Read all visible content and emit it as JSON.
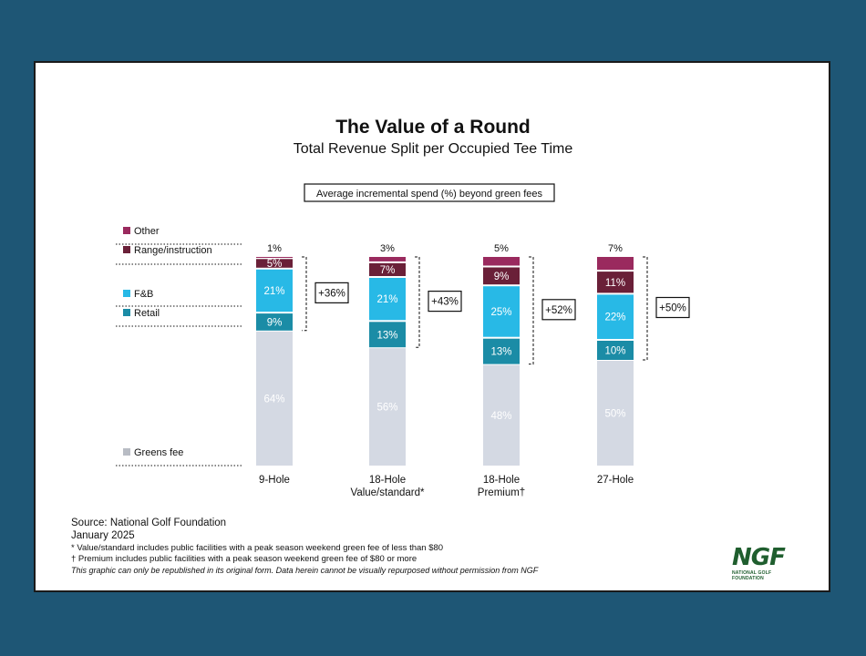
{
  "chart_data": {
    "type": "bar",
    "stacked": true,
    "title": "The Value of a Round",
    "subtitle": "Total Revenue Split per Occupied Tee Time",
    "annotation_box": "Average incremental spend (%) beyond green fees",
    "categories": [
      [
        "9-Hole"
      ],
      [
        "18-Hole",
        "Value/standard*"
      ],
      [
        "18-Hole",
        "Premium†"
      ],
      [
        "27-Hole"
      ]
    ],
    "series": [
      {
        "name": "Greens fee",
        "color": "#d4d9e3",
        "values": [
          64,
          56,
          48,
          50
        ]
      },
      {
        "name": "Retail",
        "color": "#1b8ca6",
        "values": [
          9,
          13,
          13,
          10
        ]
      },
      {
        "name": "F&B",
        "color": "#28b9e6",
        "values": [
          21,
          21,
          25,
          22
        ]
      },
      {
        "name": "Range/instruction",
        "color": "#6a2038",
        "values": [
          5,
          7,
          9,
          11
        ]
      },
      {
        "name": "Other",
        "color": "#9a2a5e",
        "values": [
          1,
          3,
          5,
          7
        ]
      }
    ],
    "labels": [
      [
        "64%",
        "9%",
        "21%",
        "5%",
        "1%"
      ],
      [
        "56%",
        "13%",
        "21%",
        "7%",
        "3%"
      ],
      [
        "48%",
        "13%",
        "25%",
        "9%",
        "5%"
      ],
      [
        "50%",
        "10%",
        "22%",
        "11%",
        "7%"
      ]
    ],
    "incremental": [
      "+36%",
      "+43%",
      "+52%",
      "+50%"
    ],
    "legend_placement": "left",
    "grid": false
  },
  "footer": {
    "source": "Source: National Golf Foundation",
    "date": "January 2025",
    "note1": "* Value/standard includes public facilities with a peak season weekend green fee of less than $80",
    "note2": "† Premium includes public facilities with a peak season weekend green fee of $80 or more",
    "disclaimer": "This graphic can only be republished in its original form. Data herein cannot be visually repurposed without permission from NGF"
  },
  "logo": {
    "mark": "NGF",
    "text": "NATIONAL GOLF FOUNDATION"
  }
}
